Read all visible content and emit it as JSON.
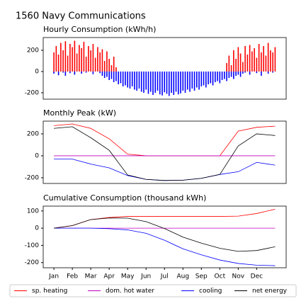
{
  "title": "1560 Navy Communications",
  "chart_data": [
    {
      "type": "bar",
      "title": "Hourly Consumption (kWh/h)",
      "ylim": [
        -260,
        320
      ],
      "yticks": [
        -200,
        0,
        200
      ],
      "xlim": [
        0.42,
        13.6
      ],
      "x": [
        1,
        1.125,
        1.25,
        1.375,
        1.5,
        1.625,
        1.75,
        1.875,
        2,
        2.125,
        2.25,
        2.375,
        2.5,
        2.625,
        2.75,
        2.875,
        3,
        3.125,
        3.25,
        3.375,
        3.5,
        3.625,
        3.75,
        3.875,
        4,
        4.125,
        4.25,
        4.375,
        4.5,
        4.625,
        4.75,
        4.875,
        5,
        5.125,
        5.25,
        5.375,
        5.5,
        5.625,
        5.75,
        5.875,
        6,
        6.125,
        6.25,
        6.375,
        6.5,
        6.625,
        6.75,
        6.875,
        7,
        7.125,
        7.25,
        7.375,
        7.5,
        7.625,
        7.75,
        7.875,
        8,
        8.125,
        8.25,
        8.375,
        8.5,
        8.625,
        8.75,
        8.875,
        9,
        9.125,
        9.25,
        9.375,
        9.5,
        9.625,
        9.75,
        9.875,
        10,
        10.125,
        10.25,
        10.375,
        10.5,
        10.625,
        10.75,
        10.875,
        11,
        11.125,
        11.25,
        11.375,
        11.5,
        11.625,
        11.75,
        11.875,
        12,
        12.125,
        12.25,
        12.375,
        12.5,
        12.625,
        12.75,
        12.875,
        13
      ],
      "series": [
        {
          "name": "sp. heating",
          "color": "#ff0000",
          "values": [
            180,
            240,
            160,
            270,
            200,
            285,
            150,
            260,
            230,
            290,
            170,
            250,
            220,
            280,
            140,
            240,
            200,
            260,
            130,
            230,
            180,
            210,
            100,
            190,
            120,
            60,
            140,
            40,
            0,
            0,
            0,
            0,
            0,
            0,
            0,
            0,
            0,
            0,
            0,
            0,
            0,
            0,
            0,
            0,
            0,
            0,
            0,
            0,
            0,
            0,
            0,
            0,
            0,
            0,
            0,
            0,
            0,
            0,
            0,
            0,
            0,
            0,
            0,
            0,
            0,
            0,
            0,
            0,
            0,
            0,
            0,
            0,
            0,
            0,
            0,
            80,
            150,
            60,
            200,
            120,
            230,
            170,
            90,
            240,
            160,
            250,
            190,
            220,
            130,
            260,
            180,
            240,
            150,
            270,
            200,
            180,
            230
          ]
        },
        {
          "name": "cooling",
          "color": "#0000ff",
          "values": [
            -20,
            0,
            -35,
            0,
            -10,
            -40,
            0,
            -15,
            0,
            -30,
            0,
            0,
            -20,
            0,
            -10,
            0,
            0,
            -25,
            0,
            0,
            -15,
            -40,
            -60,
            -50,
            -80,
            -70,
            -100,
            -90,
            -120,
            -110,
            -140,
            -130,
            -150,
            -160,
            -140,
            -170,
            -180,
            -160,
            -190,
            -200,
            -170,
            -210,
            -190,
            -220,
            -200,
            -180,
            -215,
            -225,
            -195,
            -210,
            -230,
            -200,
            -220,
            -190,
            -215,
            -205,
            -180,
            -200,
            -170,
            -190,
            -160,
            -180,
            -150,
            -170,
            -140,
            -130,
            -150,
            -120,
            -110,
            -130,
            -100,
            -90,
            -110,
            -80,
            -70,
            -90,
            -60,
            -50,
            -70,
            -40,
            -30,
            -50,
            -20,
            -10,
            0,
            -30,
            0,
            0,
            -15,
            0,
            -40,
            0,
            0,
            -20,
            0,
            -10,
            0
          ]
        }
      ]
    },
    {
      "type": "line",
      "title": "Monthly Peak (kW)",
      "ylim": [
        -252,
        316
      ],
      "yticks": [
        -200,
        0,
        200
      ],
      "xlim": [
        0.42,
        13.6
      ],
      "x": [
        1,
        2,
        3,
        4,
        5,
        6,
        7,
        8,
        9,
        10,
        11,
        12,
        13
      ],
      "series": [
        {
          "name": "sp. heating",
          "color": "#ff0000",
          "values": [
            275,
            290,
            250,
            155,
            15,
            0,
            0,
            0,
            0,
            0,
            225,
            260,
            270
          ]
        },
        {
          "name": "dom. hot water",
          "color": "#bf00bf",
          "values": [
            0,
            0,
            0,
            0,
            0,
            0,
            0,
            0,
            0,
            0,
            0,
            0,
            0
          ]
        },
        {
          "name": "cooling",
          "color": "#0000ff",
          "values": [
            -30,
            -30,
            -75,
            -110,
            -180,
            -215,
            -225,
            -222,
            -205,
            -170,
            -145,
            -60,
            -85
          ]
        },
        {
          "name": "net energy",
          "color": "#000000",
          "values": [
            250,
            265,
            165,
            50,
            -175,
            -215,
            -225,
            -222,
            -205,
            -170,
            90,
            200,
            185
          ]
        }
      ]
    },
    {
      "type": "line",
      "title": "Cumulative Consumption (thousand kWh)",
      "ylim": [
        -230,
        128
      ],
      "yticks": [
        -200,
        -100,
        0,
        100
      ],
      "xlim": [
        0.42,
        13.6
      ],
      "xticks": [
        {
          "value": 1,
          "label": "Jan"
        },
        {
          "value": 2,
          "label": "Feb"
        },
        {
          "value": 3,
          "label": "Mar"
        },
        {
          "value": 4,
          "label": "Apr"
        },
        {
          "value": 5,
          "label": "May"
        },
        {
          "value": 6,
          "label": "Jun"
        },
        {
          "value": 7,
          "label": "Jul"
        },
        {
          "value": 8,
          "label": "Aug"
        },
        {
          "value": 9,
          "label": "Sep"
        },
        {
          "value": 10,
          "label": "Oct"
        },
        {
          "value": 11,
          "label": "Nov"
        },
        {
          "value": 12,
          "label": "Dec"
        }
      ],
      "x": [
        1,
        2,
        3,
        4,
        5,
        6,
        7,
        8,
        9,
        10,
        11,
        12,
        13
      ],
      "series": [
        {
          "name": "sp. heating",
          "color": "#ff0000",
          "values": [
            0,
            15,
            50,
            62,
            68,
            68,
            68,
            68,
            68,
            68,
            70,
            85,
            110
          ]
        },
        {
          "name": "dom. hot water",
          "color": "#bf00bf",
          "values": [
            0,
            0,
            0,
            0,
            0,
            0,
            0,
            0,
            0,
            0,
            0,
            0,
            0
          ]
        },
        {
          "name": "cooling",
          "color": "#0000ff",
          "values": [
            0,
            0,
            0,
            -3,
            -10,
            -30,
            -70,
            -120,
            -155,
            -185,
            -205,
            -215,
            -218
          ]
        },
        {
          "name": "net energy",
          "color": "#000000",
          "values": [
            0,
            15,
            50,
            59,
            58,
            38,
            -2,
            -52,
            -87,
            -117,
            -135,
            -130,
            -108
          ]
        }
      ]
    }
  ]
}
